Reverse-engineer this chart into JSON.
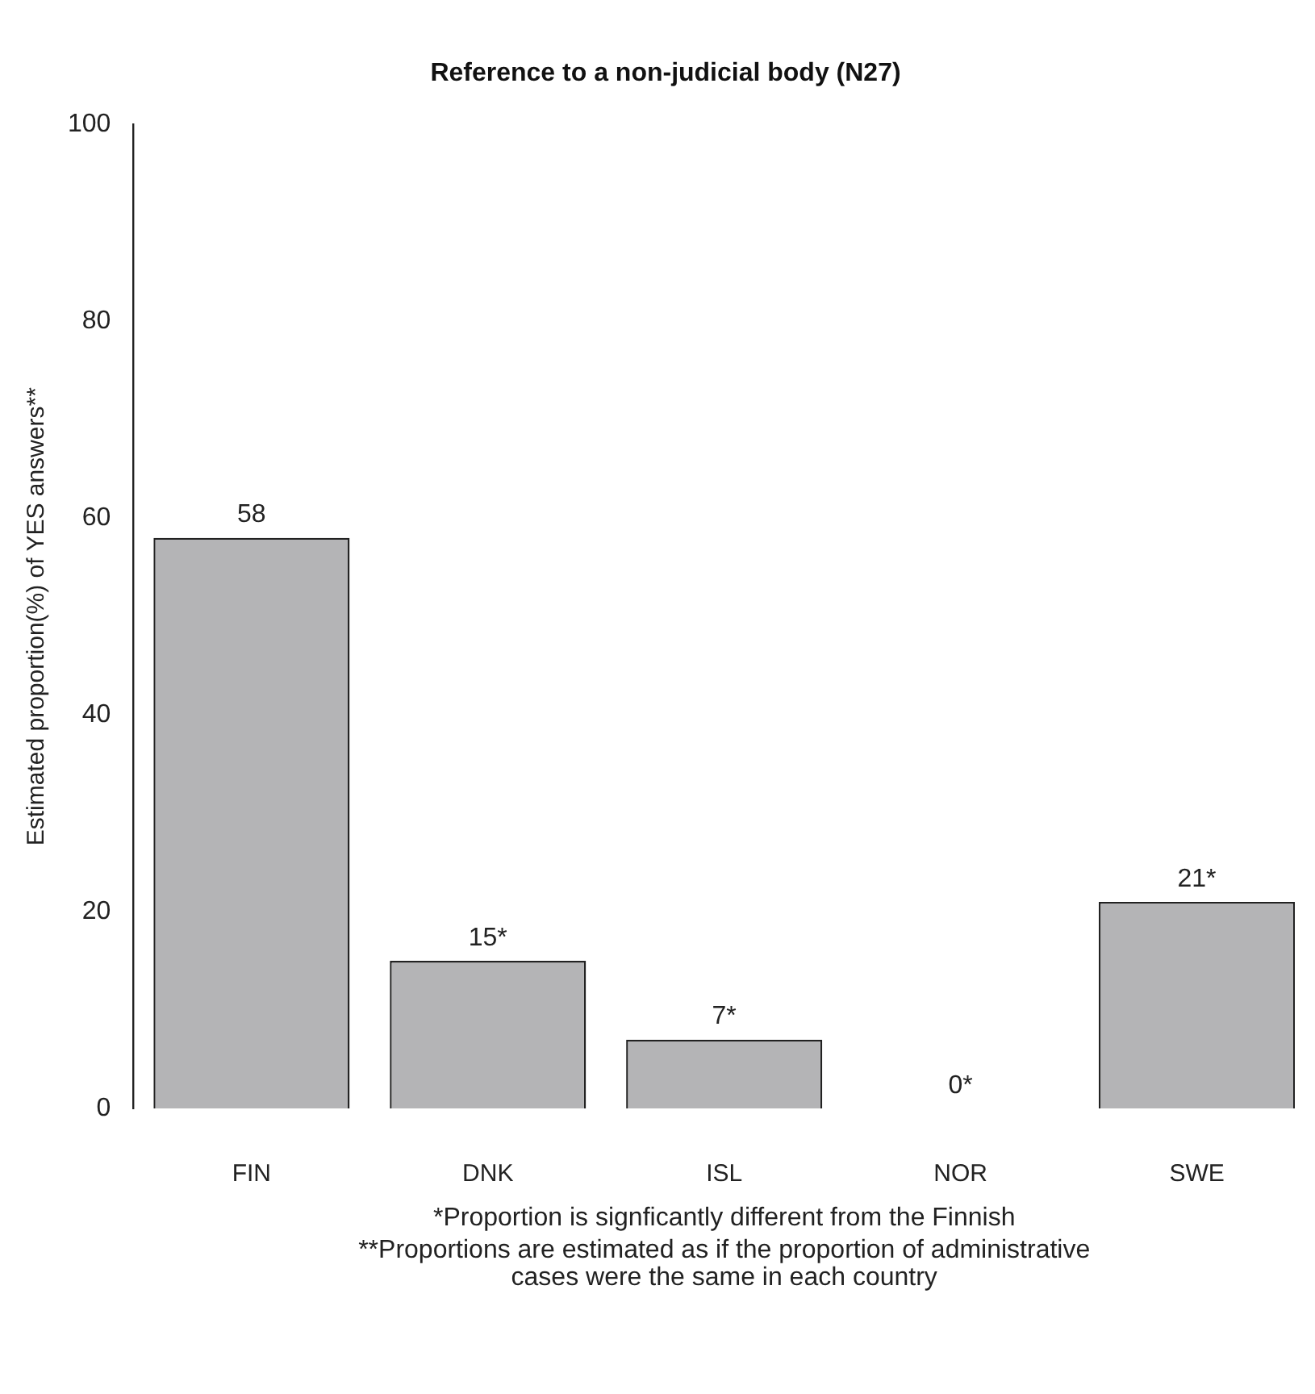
{
  "chart_data": {
    "type": "bar",
    "title": "Reference to a non-judicial body (N27)",
    "ylabel": "Estimated proportion(%) of YES answers**",
    "categories": [
      "FIN",
      "DNK",
      "ISL",
      "NOR",
      "SWE"
    ],
    "values": [
      58,
      15,
      7,
      0,
      21
    ],
    "value_labels": [
      "58",
      "15*",
      "7*",
      "0*",
      "21*"
    ],
    "color": "#b4b4b6",
    "ylim": [
      0,
      100
    ],
    "yticks": [
      0,
      20,
      40,
      60,
      80,
      100
    ],
    "grid": false,
    "legend": false,
    "annotations": [
      "*Proportion is signficantly different from the Finnish",
      "**Proportions are estimated as if the proportion of administrative cases were the same in each country"
    ]
  }
}
